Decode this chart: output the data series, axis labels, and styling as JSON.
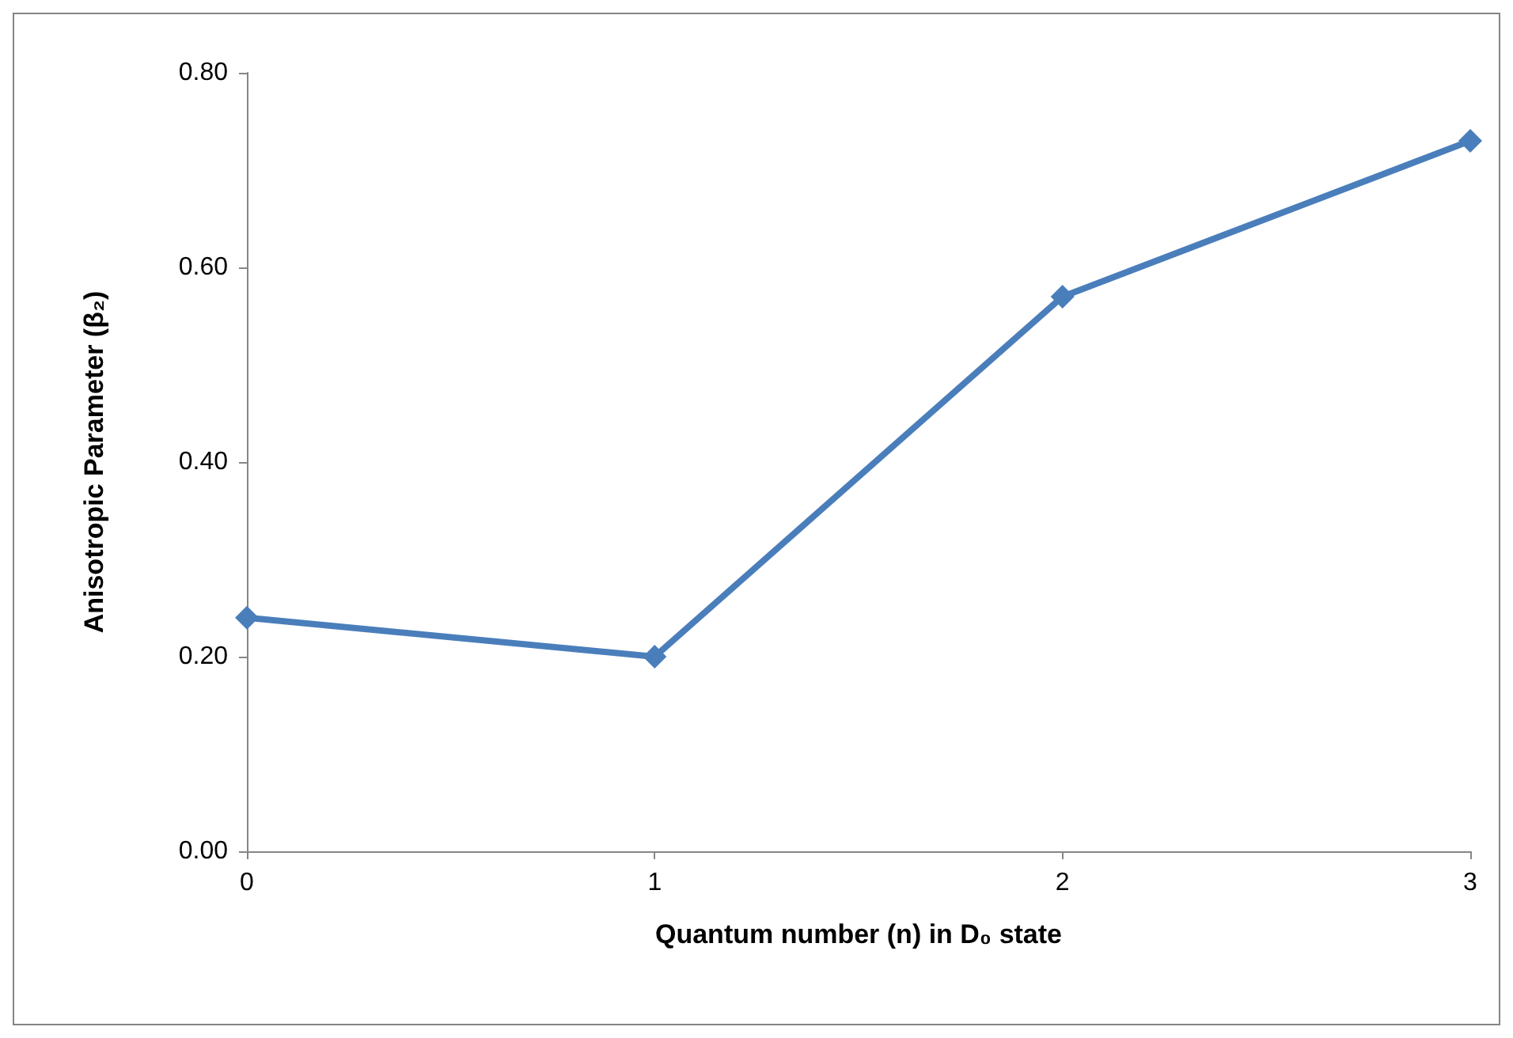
{
  "chart_data": {
    "type": "line",
    "xlabel": "Quantum number (n) in D₀ state",
    "ylabel": "Anisotropic Parameter (β₂)",
    "x": [
      0,
      1,
      2,
      3
    ],
    "series": [
      {
        "color": "#4a7ebb",
        "values": [
          0.24,
          0.2,
          0.57,
          0.73
        ]
      }
    ],
    "xlim": [
      0,
      3
    ],
    "xticks": [
      0,
      1,
      2,
      3
    ],
    "ylim": [
      0,
      0.8
    ],
    "yticks": [
      {
        "value": 0,
        "label": "0.00"
      },
      {
        "value": 0.2,
        "label": "0.20"
      },
      {
        "value": 0.4,
        "label": "0.40"
      },
      {
        "value": 0.6,
        "label": "0.60"
      },
      {
        "value": 0.8,
        "label": "0.80"
      }
    ],
    "grid": false,
    "marker": "diamond",
    "line_style": "solid"
  }
}
